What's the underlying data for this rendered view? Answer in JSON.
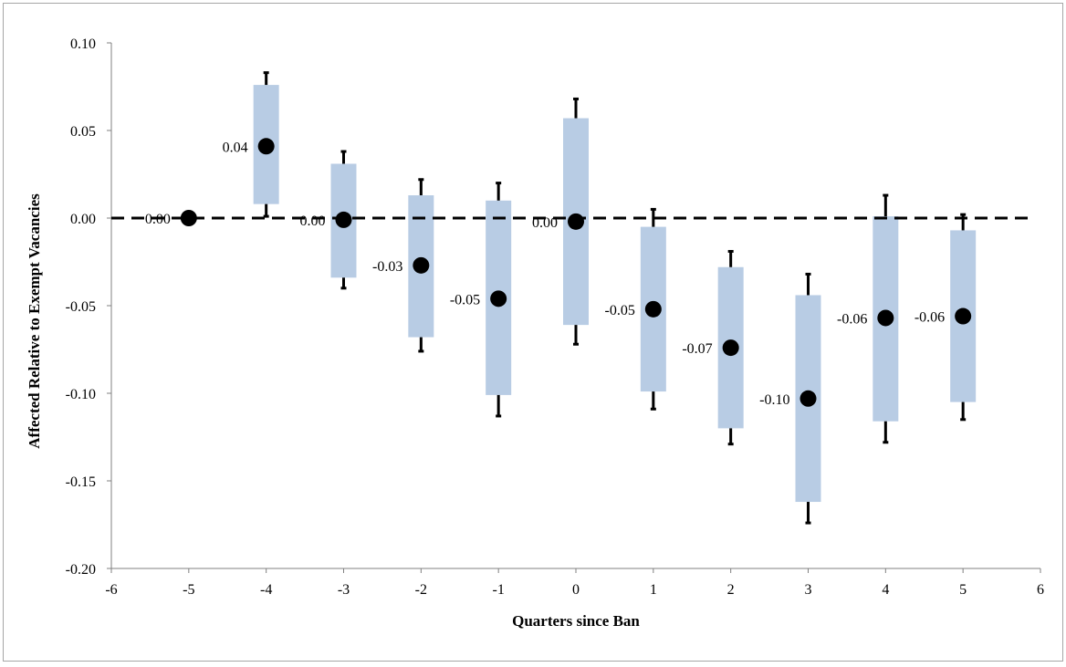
{
  "chart_data": {
    "type": "scatter",
    "title": "",
    "xlabel": "Quarters since Ban",
    "ylabel": "Affected Relative to Exempt Vacancies",
    "xlim": [
      -6,
      6
    ],
    "ylim": [
      -0.2,
      0.1
    ],
    "x_ticks": [
      "-6",
      "-5",
      "-4",
      "-3",
      "-2",
      "-1",
      "0",
      "1",
      "2",
      "3",
      "4",
      "5",
      "6"
    ],
    "y_ticks": [
      "0.10",
      "0.05",
      "0.00",
      "-0.05",
      "-0.10",
      "-0.15",
      "-0.20"
    ],
    "zero_line": "dashed",
    "grid": false,
    "colors": {
      "box": "#b8cce4",
      "point": "#000000",
      "whisker": "#000000"
    },
    "points": [
      {
        "x": -5,
        "y": 0.0,
        "label": "0.00",
        "box": [
          0.0,
          0.0
        ],
        "whisker": [
          0.0,
          0.0
        ]
      },
      {
        "x": -4,
        "y": 0.041,
        "label": "0.04",
        "box": [
          0.008,
          0.076
        ],
        "whisker": [
          0.001,
          0.083
        ]
      },
      {
        "x": -3,
        "y": -0.001,
        "label": "0.00",
        "box": [
          -0.034,
          0.031
        ],
        "whisker": [
          -0.04,
          0.038
        ]
      },
      {
        "x": -2,
        "y": -0.027,
        "label": "-0.03",
        "box": [
          -0.068,
          0.013
        ],
        "whisker": [
          -0.076,
          0.022
        ]
      },
      {
        "x": -1,
        "y": -0.046,
        "label": "-0.05",
        "box": [
          -0.101,
          0.01
        ],
        "whisker": [
          -0.113,
          0.02
        ]
      },
      {
        "x": 0,
        "y": -0.002,
        "label": "0.00",
        "box": [
          -0.061,
          0.057
        ],
        "whisker": [
          -0.072,
          0.068
        ]
      },
      {
        "x": 1,
        "y": -0.052,
        "label": "-0.05",
        "box": [
          -0.099,
          -0.005
        ],
        "whisker": [
          -0.109,
          0.005
        ]
      },
      {
        "x": 2,
        "y": -0.074,
        "label": "-0.07",
        "box": [
          -0.12,
          -0.028
        ],
        "whisker": [
          -0.129,
          -0.019
        ]
      },
      {
        "x": 3,
        "y": -0.103,
        "label": "-0.10",
        "box": [
          -0.162,
          -0.044
        ],
        "whisker": [
          -0.174,
          -0.032
        ]
      },
      {
        "x": 4,
        "y": -0.057,
        "label": "-0.06",
        "box": [
          -0.116,
          0.001
        ],
        "whisker": [
          -0.128,
          0.013
        ]
      },
      {
        "x": 5,
        "y": -0.056,
        "label": "-0.06",
        "box": [
          -0.105,
          -0.007
        ],
        "whisker": [
          -0.115,
          0.002
        ]
      }
    ]
  }
}
